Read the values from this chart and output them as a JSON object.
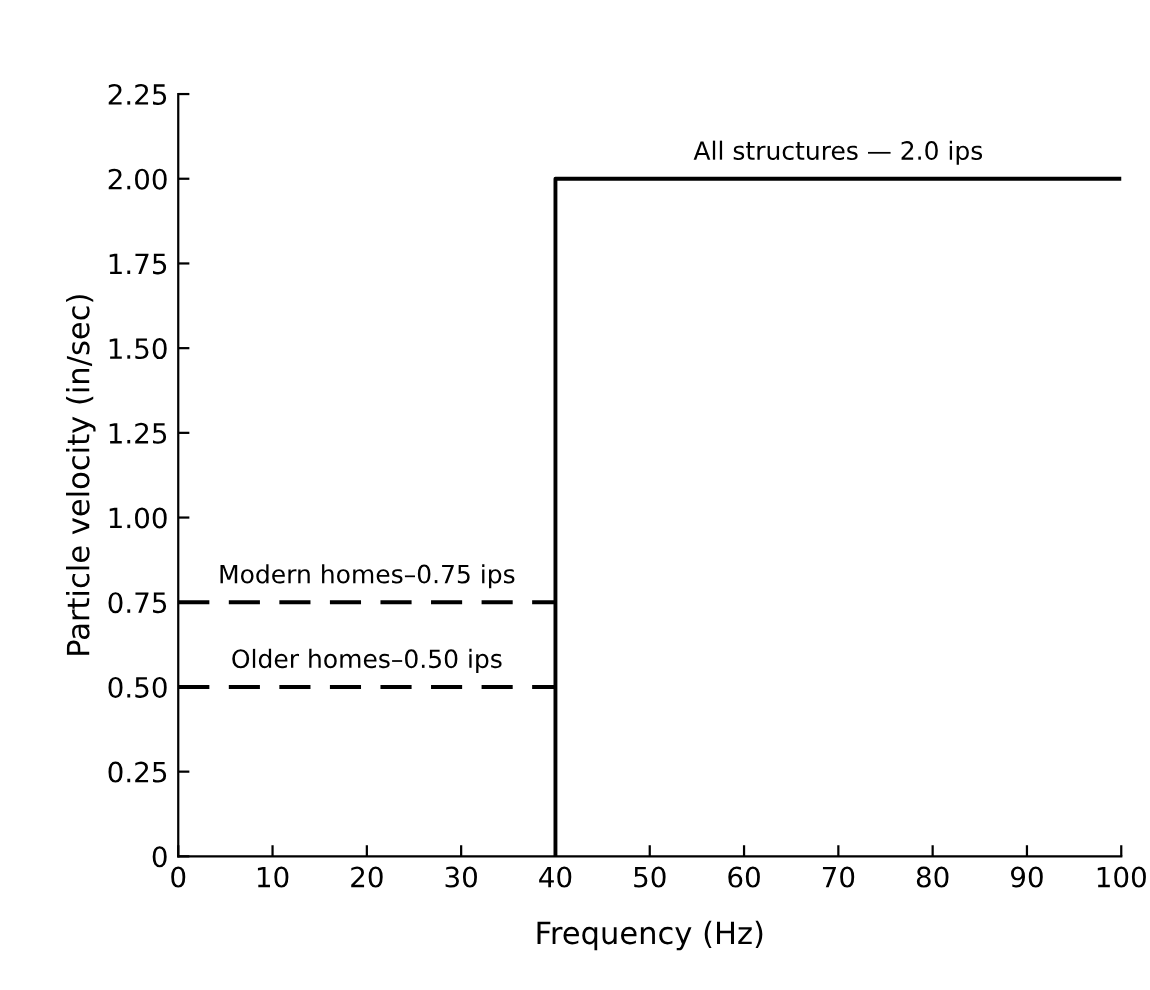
{
  "chart_data": {
    "type": "line",
    "xlabel": "Frequency (Hz)",
    "ylabel": "Particle velocity (in/sec)",
    "series": [
      {
        "name": "All structures — 2.0 ips",
        "color": "#000000",
        "line_style": "solid",
        "x": [
          40,
          40,
          100
        ],
        "values": [
          0,
          2.0,
          2.0
        ]
      },
      {
        "name": "Modern homes–0.75 ips",
        "color": "#000000",
        "line_style": "dashed",
        "x": [
          0,
          40
        ],
        "values": [
          0.75,
          0.75
        ]
      },
      {
        "name": "Older homes–0.50 ips",
        "color": "#000000",
        "line_style": "dashed",
        "x": [
          0,
          40
        ],
        "values": [
          0.5,
          0.5
        ]
      }
    ],
    "xlim": [
      0,
      100
    ],
    "ylim": [
      0,
      2.25
    ],
    "xticks": [
      0,
      10,
      20,
      30,
      40,
      50,
      60,
      70,
      80,
      90,
      100
    ],
    "yticks": [
      0,
      {
        "value": 0.25,
        "label": "0.25"
      },
      {
        "value": 0.5,
        "label": "0.50"
      },
      {
        "value": 0.75,
        "label": "0.75"
      },
      {
        "value": 1.0,
        "label": "1.00"
      },
      {
        "value": 1.25,
        "label": "1.25"
      },
      {
        "value": 1.5,
        "label": "1.50"
      },
      {
        "value": 1.75,
        "label": "1.75"
      },
      {
        "value": 2.0,
        "label": "2.00"
      },
      {
        "value": 2.25,
        "label": "2.25"
      }
    ],
    "grid": false,
    "legend": false,
    "marker": "none"
  }
}
